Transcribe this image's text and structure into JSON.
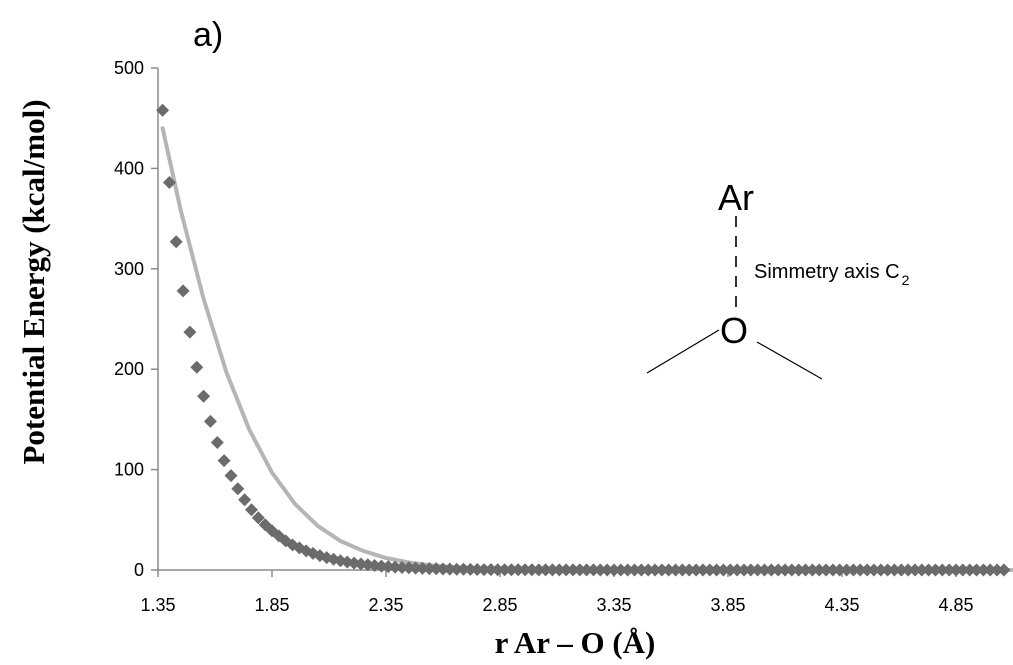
{
  "chart_data": {
    "type": "scatter",
    "panel_label": "a)",
    "title": "",
    "xlabel": "r Ar – O (Å)",
    "ylabel": "Potential Energy (kcal/mol)",
    "xlim": [
      1.35,
      5.1
    ],
    "ylim": [
      0,
      500
    ],
    "xticks": [
      "1.35",
      "1.85",
      "2.35",
      "2.85",
      "3.35",
      "3.85",
      "4.35",
      "4.85"
    ],
    "yticks": [
      "0",
      "100",
      "200",
      "300",
      "400",
      "500"
    ],
    "grid": false,
    "legend": "none",
    "series": [
      {
        "marker": "diamond",
        "color": "#6b6b6b",
        "x": [
          1.37,
          1.4,
          1.43,
          1.46,
          1.49,
          1.52,
          1.55,
          1.58,
          1.61,
          1.64,
          1.67,
          1.7,
          1.73,
          1.76,
          1.79,
          1.82,
          1.85,
          1.88,
          1.91,
          1.94,
          1.97,
          2.0,
          2.03,
          2.06,
          2.09,
          2.12,
          2.15,
          2.18,
          2.21,
          2.24,
          2.27,
          2.3,
          2.33,
          2.36,
          2.39,
          2.42,
          2.45,
          2.48,
          2.51,
          2.54,
          2.57,
          2.6,
          2.63,
          2.66,
          2.69,
          2.72,
          2.75,
          2.78,
          2.81,
          2.84,
          2.87,
          2.9,
          2.93,
          2.96,
          2.99,
          3.02,
          3.05,
          3.08,
          3.11,
          3.14,
          3.17,
          3.2,
          3.23,
          3.26,
          3.29,
          3.32,
          3.35,
          3.38,
          3.41,
          3.44,
          3.47,
          3.5,
          3.53,
          3.56,
          3.59,
          3.62,
          3.65,
          3.68,
          3.71,
          3.74,
          3.77,
          3.8,
          3.83,
          3.86,
          3.89,
          3.92,
          3.95,
          3.98,
          4.01,
          4.04,
          4.07,
          4.1,
          4.13,
          4.16,
          4.19,
          4.22,
          4.25,
          4.28,
          4.31,
          4.34,
          4.37,
          4.4,
          4.43,
          4.46,
          4.49,
          4.52,
          4.55,
          4.58,
          4.61,
          4.64,
          4.67,
          4.7,
          4.73,
          4.76,
          4.79,
          4.82,
          4.85,
          4.88,
          4.91,
          4.94,
          4.97,
          5.0,
          5.03,
          5.06
        ],
        "y": [
          458,
          386,
          327,
          278,
          237,
          202,
          173,
          148,
          127,
          109,
          94,
          81,
          70,
          60,
          52,
          45,
          39,
          34,
          29,
          25,
          22,
          19,
          16.5,
          14.3,
          12.4,
          10.7,
          9.3,
          8.0,
          6.9,
          6.0,
          5.2,
          4.5,
          3.9,
          3.4,
          2.9,
          2.5,
          2.2,
          1.9,
          1.6,
          1.4,
          1.2,
          1.0,
          0.9,
          0.8,
          0.7,
          0.6,
          0.5,
          0.4,
          0.35,
          0.3,
          0.26,
          0.22,
          0.19,
          0.17,
          0.15,
          0.13,
          0.11,
          0.1,
          0.09,
          0.08,
          0.07,
          0.06,
          0.05,
          0.05,
          0.04,
          0.04,
          0.03,
          0.03,
          0.03,
          0.02,
          0.02,
          0.02,
          0.02,
          0.01,
          0.01,
          0.01,
          0.01,
          0.01,
          0.01,
          0.01,
          0.01,
          0,
          0,
          0,
          0,
          0,
          0,
          0,
          0,
          0,
          0,
          0,
          0,
          0,
          0,
          0,
          0,
          0,
          0,
          0,
          0,
          0,
          0,
          0,
          0,
          0,
          0,
          0,
          0,
          0,
          0,
          0,
          0,
          0,
          0,
          0,
          0,
          0,
          0,
          0,
          0,
          0,
          0,
          0
        ]
      },
      {
        "marker": "line",
        "color": "#b5b5b5",
        "x": [
          1.37,
          1.45,
          1.55,
          1.65,
          1.75,
          1.85,
          1.95,
          2.05,
          2.15,
          2.25,
          2.35,
          2.45,
          2.55,
          2.65,
          2.75,
          2.85,
          3.0,
          3.2,
          3.5,
          4.0,
          4.5,
          5.1
        ],
        "y": [
          440,
          358,
          270,
          197,
          140,
          97,
          66,
          44,
          29,
          19,
          12,
          7.5,
          4.6,
          2.8,
          1.7,
          1.0,
          0.45,
          0.15,
          0.03,
          0,
          0,
          0
        ]
      }
    ],
    "annotations": {
      "molecule_top": "Ar",
      "molecule_center": "O",
      "axis_label_text": "Simmetry axis C",
      "axis_label_subscript": "2"
    }
  }
}
